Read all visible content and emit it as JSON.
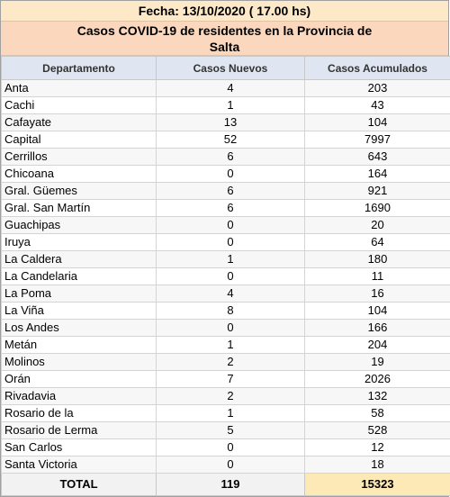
{
  "header": {
    "date_line": "Fecha: 13/10/2020 ( 17.00 hs)",
    "title_line1": "Casos COVID-19 de residentes en la Provincia de",
    "title_line2": "Salta"
  },
  "columns": [
    "Departamento",
    "Casos Nuevos",
    "Casos Acumulados"
  ],
  "rows": [
    {
      "dep": "Anta",
      "nuevos": "4",
      "acum": "203"
    },
    {
      "dep": "Cachi",
      "nuevos": "1",
      "acum": "43"
    },
    {
      "dep": "Cafayate",
      "nuevos": "13",
      "acum": "104"
    },
    {
      "dep": "Capital",
      "nuevos": "52",
      "acum": "7997"
    },
    {
      "dep": "Cerrillos",
      "nuevos": "6",
      "acum": "643"
    },
    {
      "dep": "Chicoana",
      "nuevos": "0",
      "acum": "164"
    },
    {
      "dep": "Gral. Güemes",
      "nuevos": "6",
      "acum": "921"
    },
    {
      "dep": "Gral. San Martín",
      "nuevos": "6",
      "acum": "1690"
    },
    {
      "dep": "Guachipas",
      "nuevos": "0",
      "acum": "20"
    },
    {
      "dep": "Iruya",
      "nuevos": "0",
      "acum": "64"
    },
    {
      "dep": "La Caldera",
      "nuevos": "1",
      "acum": "180"
    },
    {
      "dep": "La Candelaria",
      "nuevos": "0",
      "acum": "11"
    },
    {
      "dep": "La Poma",
      "nuevos": "4",
      "acum": "16"
    },
    {
      "dep": "La Viña",
      "nuevos": "8",
      "acum": "104"
    },
    {
      "dep": "Los Andes",
      "nuevos": "0",
      "acum": "166"
    },
    {
      "dep": "Metán",
      "nuevos": "1",
      "acum": "204"
    },
    {
      "dep": "Molinos",
      "nuevos": "2",
      "acum": "19"
    },
    {
      "dep": "Orán",
      "nuevos": "7",
      "acum": "2026"
    },
    {
      "dep": "Rivadavia",
      "nuevos": "2",
      "acum": "132"
    },
    {
      "dep": "Rosario de la",
      "nuevos": "1",
      "acum": "58"
    },
    {
      "dep": "Rosario de Lerma",
      "nuevos": "5",
      "acum": "528"
    },
    {
      "dep": "San Carlos",
      "nuevos": "0",
      "acum": "12"
    },
    {
      "dep": "Santa Victoria",
      "nuevos": "0",
      "acum": "18"
    }
  ],
  "total": {
    "label": "TOTAL",
    "nuevos": "119",
    "acum": "15323"
  },
  "colors": {
    "date_bg": "#fde9c8",
    "title_bg": "#fbd7bd",
    "header_bg": "#dfe6f1",
    "total_acc_bg": "#fde9b6"
  }
}
